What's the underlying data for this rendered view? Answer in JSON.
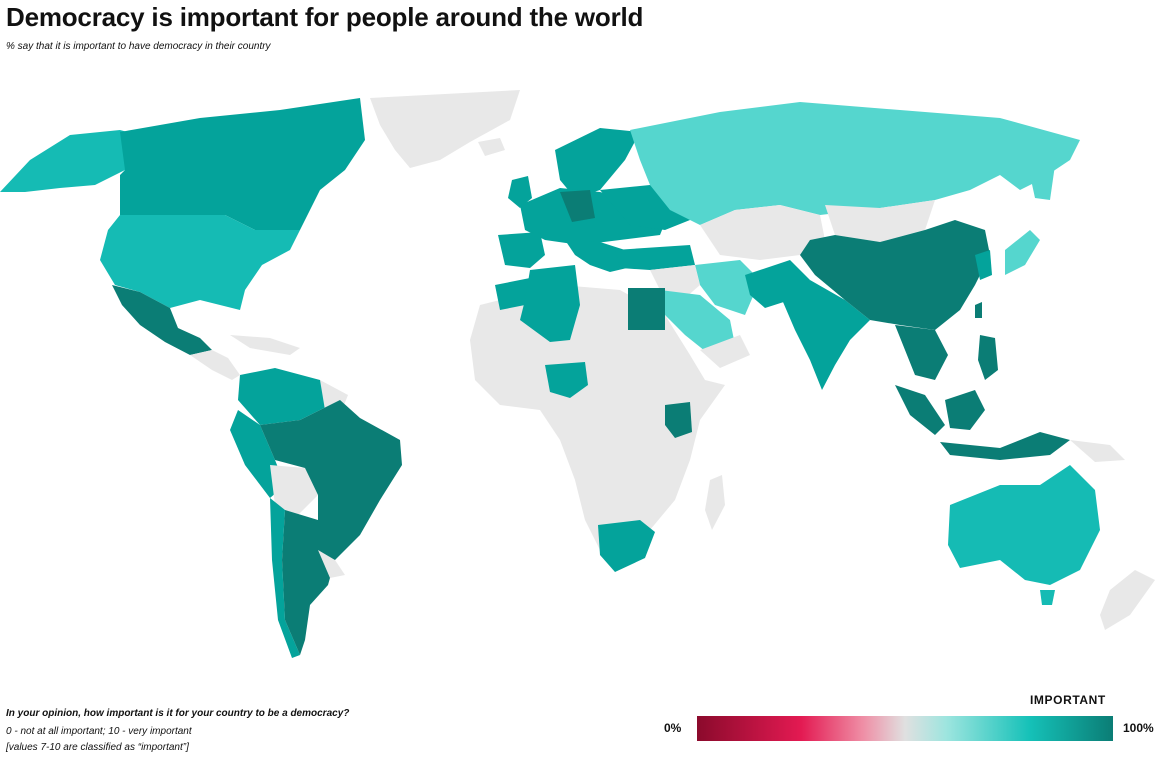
{
  "header": {
    "title": "Democracy is important for people around the world",
    "subtitle": "% say that it is important to have democracy in their country"
  },
  "footer": {
    "question": "In your opinion, how important is it for your country to be a democracy?",
    "scale_note": "0 - not at all important; 10 - very important",
    "classification_note": "[values 7-10 are classified as “important”]"
  },
  "legend": {
    "title": "IMPORTANT",
    "min_label": "0%",
    "max_label": "100%",
    "colors": {
      "low": "#8b0a2c",
      "mid": "#e0e0e0",
      "high": "#0b7d75",
      "no_data": "#e8e8e8"
    }
  }
}
